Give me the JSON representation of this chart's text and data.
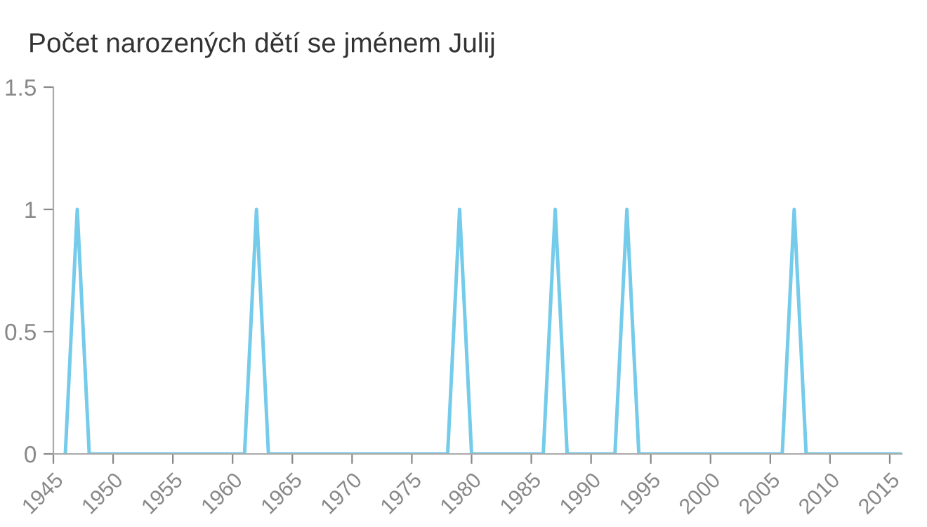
{
  "chart_data": {
    "type": "line",
    "title": "Počet narozených dětí se jménem Julij",
    "x": [
      1946,
      1947,
      1948,
      1949,
      1950,
      1951,
      1952,
      1953,
      1954,
      1955,
      1956,
      1957,
      1958,
      1959,
      1960,
      1961,
      1962,
      1963,
      1964,
      1965,
      1966,
      1967,
      1968,
      1969,
      1970,
      1971,
      1972,
      1973,
      1974,
      1975,
      1976,
      1977,
      1978,
      1979,
      1980,
      1981,
      1982,
      1983,
      1984,
      1985,
      1986,
      1987,
      1988,
      1989,
      1990,
      1991,
      1992,
      1993,
      1994,
      1995,
      1996,
      1997,
      1998,
      1999,
      2000,
      2001,
      2002,
      2003,
      2004,
      2005,
      2006,
      2007,
      2008,
      2009,
      2010,
      2011,
      2012,
      2013,
      2014,
      2015,
      2016
    ],
    "series": [
      {
        "color": "#74cbea",
        "values": [
          0,
          1,
          0,
          0,
          0,
          0,
          0,
          0,
          0,
          0,
          0,
          0,
          0,
          0,
          0,
          0,
          1,
          0,
          0,
          0,
          0,
          0,
          0,
          0,
          0,
          0,
          0,
          0,
          0,
          0,
          0,
          0,
          0,
          1,
          0,
          0,
          0,
          0,
          0,
          0,
          0,
          1,
          0,
          0,
          0,
          0,
          0,
          1,
          0,
          0,
          0,
          0,
          0,
          0,
          0,
          0,
          0,
          0,
          0,
          0,
          0,
          1,
          0,
          0,
          0,
          0,
          0,
          0,
          0,
          0,
          0
        ]
      }
    ],
    "xlim": [
      1945,
      2016
    ],
    "ylim": [
      0,
      1.5
    ],
    "xticks": [
      1945,
      1950,
      1955,
      1960,
      1965,
      1970,
      1975,
      1980,
      1985,
      1990,
      1995,
      2000,
      2005,
      2010,
      2015
    ],
    "yticks": [
      0,
      {
        "value": 0.5,
        "label": "0.5"
      },
      1,
      {
        "value": 1.5,
        "label": "1.5"
      }
    ],
    "grid": false,
    "legend": false
  }
}
